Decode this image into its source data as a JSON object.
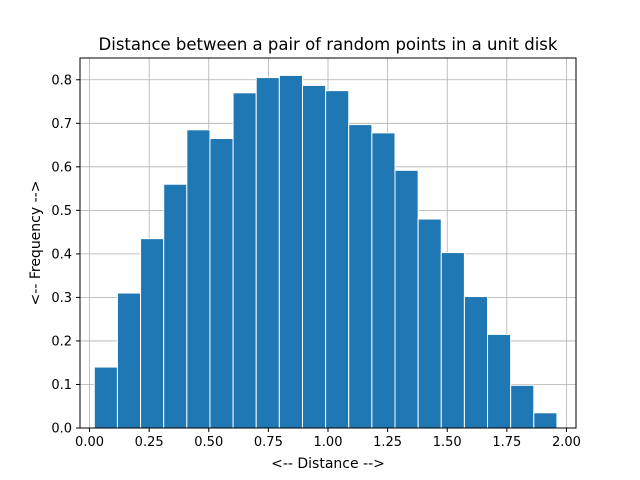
{
  "chart_data": {
    "type": "bar",
    "title": "Distance between a pair of random points in a unit disk",
    "xlabel": "<-- Distance -->",
    "ylabel": "<-- Frequency -->",
    "xlim": [
      -0.04,
      2.04
    ],
    "ylim": [
      0,
      0.85
    ],
    "x_ticks": [
      "0.00",
      "0.25",
      "0.50",
      "0.75",
      "1.00",
      "1.25",
      "1.50",
      "1.75",
      "2.00"
    ],
    "x_tick_values": [
      0.0,
      0.25,
      0.5,
      0.75,
      1.0,
      1.25,
      1.5,
      1.75,
      2.0
    ],
    "y_ticks": [
      "0.0",
      "0.1",
      "0.2",
      "0.3",
      "0.4",
      "0.5",
      "0.6",
      "0.7",
      "0.8"
    ],
    "y_tick_values": [
      0.0,
      0.1,
      0.2,
      0.3,
      0.4,
      0.5,
      0.6,
      0.7,
      0.8
    ],
    "grid": true,
    "bins": [
      [
        0.02,
        0.117
      ],
      [
        0.117,
        0.214
      ],
      [
        0.214,
        0.311
      ],
      [
        0.311,
        0.408
      ],
      [
        0.408,
        0.505
      ],
      [
        0.505,
        0.602
      ],
      [
        0.602,
        0.699
      ],
      [
        0.699,
        0.796
      ],
      [
        0.796,
        0.893
      ],
      [
        0.893,
        0.99
      ],
      [
        0.99,
        1.087
      ],
      [
        1.087,
        1.184
      ],
      [
        1.184,
        1.281
      ],
      [
        1.281,
        1.378
      ],
      [
        1.378,
        1.475
      ],
      [
        1.475,
        1.572
      ],
      [
        1.572,
        1.669
      ],
      [
        1.669,
        1.766
      ],
      [
        1.766,
        1.863
      ],
      [
        1.863,
        1.96
      ]
    ],
    "values": [
      0.14,
      0.31,
      0.435,
      0.56,
      0.685,
      0.665,
      0.77,
      0.805,
      0.81,
      0.787,
      0.775,
      0.697,
      0.678,
      0.592,
      0.48,
      0.403,
      0.302,
      0.215,
      0.098,
      0.035
    ],
    "bar_color": "#1f77b4",
    "edge_color": "#ffffff",
    "grid_color": "#b0b0b0"
  }
}
